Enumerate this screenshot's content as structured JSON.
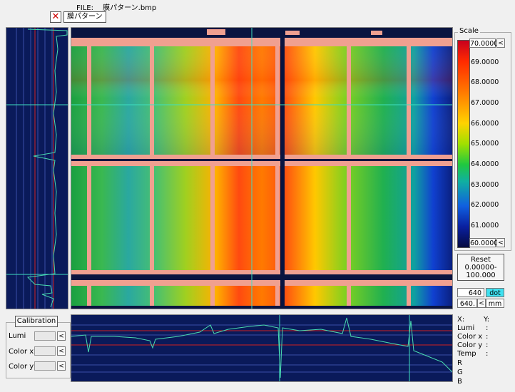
{
  "file": {
    "label": "FILE:",
    "name": "膜パターン.bmp"
  },
  "tab": {
    "close_glyph": "✕",
    "name": "膜パターン"
  },
  "scale": {
    "title": "Scale",
    "max": "70.0000",
    "min": "60.0000",
    "ticks": [
      "69.0000",
      "68.0000",
      "67.0000",
      "66.0000",
      "65.0000",
      "64.0000",
      "63.0000",
      "62.0000",
      "61.0000"
    ],
    "arrow": "<"
  },
  "reset": {
    "label": "Reset",
    "range_line1": "0.00000-",
    "range_line2": "100.000"
  },
  "coords": {
    "x_value": "640",
    "y_value": "640.",
    "dot_label": "dot",
    "mm_label": "mm",
    "arrow": "<"
  },
  "calibration": {
    "button": "Calibration",
    "lumi": "Lumi",
    "color_x": "Color x",
    "color_y": "Color y",
    "arrow": "<"
  },
  "info": {
    "x": "X:",
    "y": "Y:",
    "lumi": "Lumi",
    "color_x": "Color x",
    "color_y": "Color y",
    "temp": "Temp",
    "r": "R",
    "g": "G",
    "b": "B",
    "colon": ":"
  },
  "colors": {
    "accent_cyan": "#3ee0f0",
    "plot_bg": "#0a1a5a",
    "trace": "#4adcb0"
  }
}
